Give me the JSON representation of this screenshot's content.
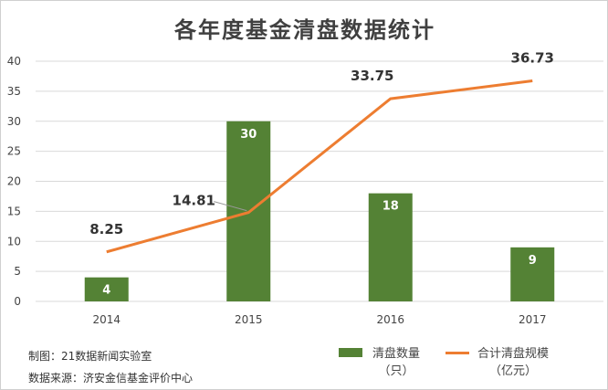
{
  "chart_data": {
    "type": "bar+line",
    "title": "各年度基金清盘数据统计",
    "categories": [
      "2014",
      "2015",
      "2016",
      "2017"
    ],
    "ylim": [
      0,
      40
    ],
    "yticks": [
      0,
      5,
      10,
      15,
      20,
      25,
      30,
      35,
      40
    ],
    "grid": true,
    "legend_position": "bottom-right",
    "series": [
      {
        "name": "清盘数量（只）",
        "type": "bar",
        "color": "#548235",
        "values": [
          4,
          30,
          18,
          9
        ]
      },
      {
        "name": "合计清盘规模（亿元）",
        "type": "line",
        "color": "#ed7d31",
        "values": [
          8.25,
          14.81,
          33.75,
          36.73
        ]
      }
    ]
  },
  "legend": {
    "bar_line1": "清盘数量",
    "bar_line2": "（只）",
    "line_line1": "合计清盘规模",
    "line_line2": "（亿元）"
  },
  "footer": {
    "maker": "制图：21数据新闻实验室",
    "source": "数据来源：济安金信基金评价中心"
  }
}
